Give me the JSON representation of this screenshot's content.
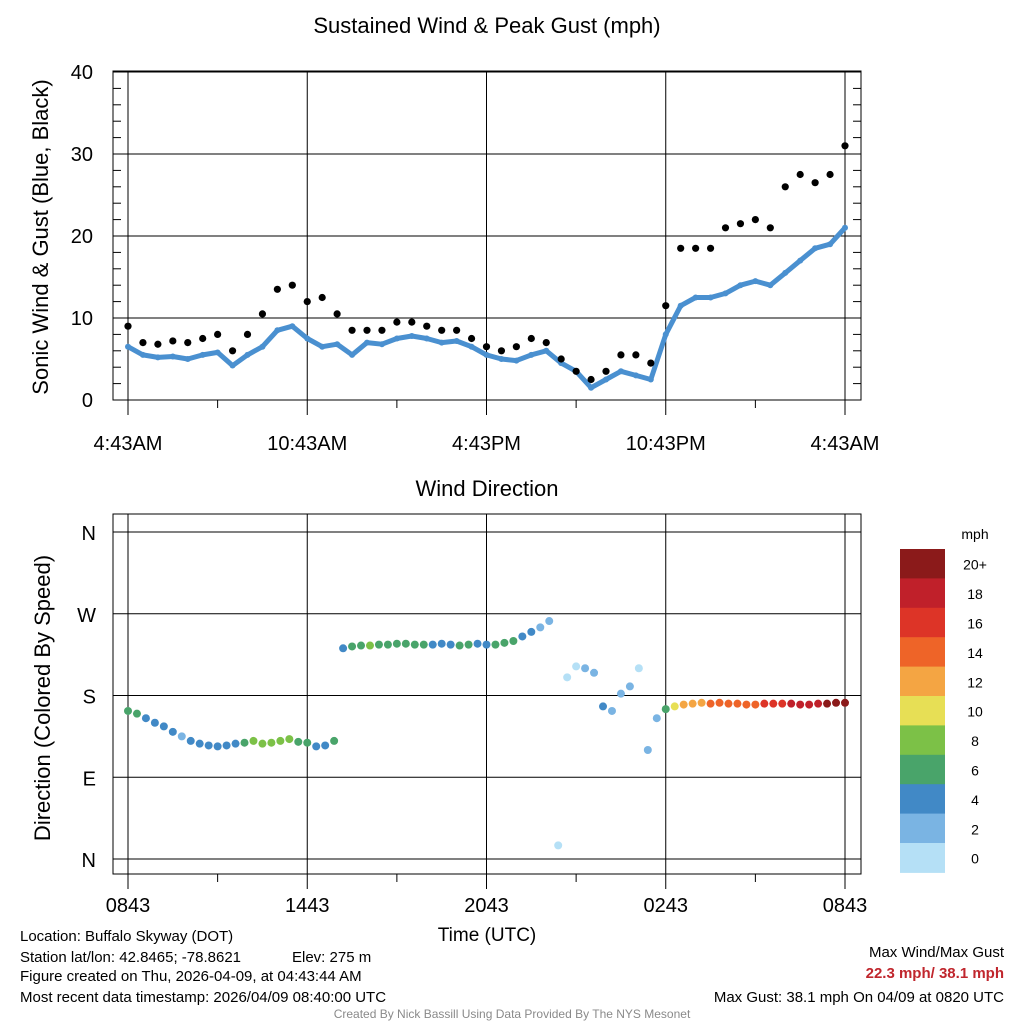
{
  "chart_data": [
    {
      "type": "scatter",
      "title": "Sustained Wind & Peak Gust (mph)",
      "ylabel": "Sonic Wind & Gust (Blue, Black)",
      "ylim": [
        0,
        40
      ],
      "yticks": [
        "0",
        "10",
        "20",
        "30",
        "40"
      ],
      "xticks": [
        "4:43AM",
        "10:43AM",
        "4:43PM",
        "10:43PM",
        "4:43AM"
      ],
      "xlim_hours": [
        0,
        24
      ],
      "series": [
        {
          "name": "Sustained Wind",
          "color": "#4a90d0",
          "x": [
            0,
            0.5,
            1,
            1.5,
            2,
            2.5,
            3,
            3.5,
            4,
            4.5,
            5,
            5.5,
            6,
            6.5,
            7,
            7.5,
            8,
            8.5,
            9,
            9.5,
            10,
            10.5,
            11,
            11.5,
            12,
            12.5,
            13,
            13.5,
            14,
            14.5,
            15,
            15.5,
            16,
            16.5,
            17,
            17.5,
            18,
            18.5,
            19,
            19.5,
            20,
            20.5,
            21,
            21.5,
            22,
            22.5,
            23,
            23.5,
            24
          ],
          "values": [
            6.5,
            5.5,
            5.2,
            5.3,
            5.0,
            5.5,
            5.8,
            4.2,
            5.5,
            6.5,
            8.5,
            9.0,
            7.5,
            6.5,
            6.8,
            5.5,
            7.0,
            6.8,
            7.5,
            7.8,
            7.5,
            7.0,
            7.2,
            6.5,
            5.5,
            5.0,
            4.8,
            5.5,
            6.0,
            4.5,
            3.5,
            1.5,
            2.5,
            3.5,
            3.0,
            2.5,
            8.0,
            11.5,
            12.5,
            12.5,
            13.0,
            14.0,
            14.5,
            14.0,
            15.5,
            17.0,
            18.5,
            19.0,
            21.0
          ]
        },
        {
          "name": "Peak Gust",
          "color": "#000000",
          "x": [
            0,
            0.5,
            1,
            1.5,
            2,
            2.5,
            3,
            3.5,
            4,
            4.5,
            5,
            5.5,
            6,
            6.5,
            7,
            7.5,
            8,
            8.5,
            9,
            9.5,
            10,
            10.5,
            11,
            11.5,
            12,
            12.5,
            13,
            13.5,
            14,
            14.5,
            15,
            15.5,
            16,
            16.5,
            17,
            17.5,
            18,
            18.5,
            19,
            19.5,
            20,
            20.5,
            21,
            21.5,
            22,
            22.5,
            23,
            23.5,
            24
          ],
          "values": [
            9.0,
            7.0,
            6.8,
            7.2,
            7.0,
            7.5,
            8.0,
            6.0,
            8.0,
            10.5,
            13.5,
            14.0,
            12.0,
            12.5,
            10.5,
            8.5,
            8.5,
            8.5,
            9.5,
            9.5,
            9.0,
            8.5,
            8.5,
            7.5,
            6.5,
            6.0,
            6.5,
            7.5,
            7.0,
            5.0,
            3.5,
            2.5,
            3.5,
            5.5,
            5.5,
            4.5,
            11.5,
            18.5,
            18.5,
            18.5,
            21.0,
            21.5,
            22.0,
            21.0,
            26.0,
            27.5,
            26.5,
            27.5,
            31.0
          ]
        }
      ]
    },
    {
      "type": "scatter",
      "title": "Wind Direction",
      "ylabel": "Direction (Colored By Speed)",
      "yticks": [
        "N",
        "E",
        "S",
        "W",
        "N"
      ],
      "ylim": [
        0,
        360
      ],
      "xticks": [
        "0843",
        "1443",
        "2043",
        "0243",
        "0843"
      ],
      "xlabel": "Time (UTC)",
      "x": [
        0,
        0.3,
        0.6,
        0.9,
        1.2,
        1.5,
        1.8,
        2.1,
        2.4,
        2.7,
        3.0,
        3.3,
        3.6,
        3.9,
        4.2,
        4.5,
        4.8,
        5.1,
        5.4,
        5.7,
        6.0,
        6.3,
        6.6,
        6.9,
        7.2,
        7.5,
        7.8,
        8.1,
        8.4,
        8.7,
        9.0,
        9.3,
        9.6,
        9.9,
        10.2,
        10.5,
        10.8,
        11.1,
        11.4,
        11.7,
        12.0,
        12.3,
        12.6,
        12.9,
        13.2,
        13.5,
        13.8,
        14.1,
        14.4,
        14.7,
        15.0,
        15.3,
        15.6,
        15.9,
        16.2,
        16.5,
        16.8,
        17.1,
        17.4,
        17.7,
        18.0,
        18.3,
        18.6,
        18.9,
        19.2,
        19.5,
        19.8,
        20.1,
        20.4,
        20.7,
        21.0,
        21.3,
        21.6,
        21.9,
        22.2,
        22.5,
        22.8,
        23.1,
        23.4,
        23.7,
        24.0
      ],
      "values": [
        163,
        160,
        155,
        150,
        146,
        140,
        135,
        130,
        127,
        125,
        124,
        125,
        127,
        128,
        130,
        127,
        128,
        130,
        132,
        129,
        128,
        124,
        125,
        130,
        232,
        234,
        235,
        235,
        236,
        236,
        237,
        237,
        236,
        236,
        236,
        237,
        236,
        235,
        236,
        237,
        236,
        236,
        238,
        240,
        245,
        250,
        255,
        262,
        15,
        200,
        212,
        210,
        205,
        168,
        163,
        182,
        190,
        210,
        120,
        155,
        165,
        168,
        170,
        171,
        172,
        171,
        172,
        171,
        171,
        170,
        170,
        171,
        171,
        171,
        171,
        170,
        170,
        171,
        171,
        172,
        172
      ],
      "speeds": [
        6,
        6,
        5,
        4,
        4,
        4,
        3,
        4,
        5,
        4,
        4,
        5,
        5,
        7,
        8,
        8,
        9,
        9,
        8,
        7,
        6,
        5,
        5,
        6,
        4,
        6,
        7,
        8,
        7,
        7,
        7,
        6,
        7,
        6,
        5,
        4,
        5,
        6,
        6,
        5,
        5,
        6,
        7,
        6,
        5,
        4,
        3,
        2,
        1,
        1,
        1,
        2,
        3,
        4,
        2,
        3,
        2,
        1,
        2,
        3,
        6,
        10,
        12,
        13,
        13,
        14,
        15,
        14,
        14,
        15,
        15,
        16,
        16,
        17,
        18,
        18,
        19,
        19,
        20,
        21,
        20
      ],
      "colorbar": {
        "unit": "mph",
        "labels": [
          "20+",
          "18",
          "16",
          "14",
          "12",
          "10",
          "8",
          "6",
          "4",
          "2",
          "0"
        ],
        "colors": [
          "#8b1a1a",
          "#c0202a",
          "#dd3427",
          "#ee6428",
          "#f4a543",
          "#e7df55",
          "#7cc147",
          "#49a46a",
          "#4189c6",
          "#7ab4e3",
          "#b5e0f6"
        ]
      }
    }
  ],
  "info": {
    "location": "Location: Buffalo Skyway (DOT)",
    "latlon": "Station lat/lon: 42.8465; -78.8621",
    "elev": "Elev: 275 m",
    "created": "Figure created on Thu, 2026-04-09, at 04:43:44 AM",
    "recent": "Most recent data timestamp: 2026/04/09 08:40:00 UTC"
  },
  "stats": {
    "label": "Max Wind/Max Gust",
    "value": "22.3 mph/ 38.1 mph",
    "maxgust": "Max Gust: 38.1 mph On 04/09 at 0820 UTC"
  },
  "footer": "Created By Nick Bassill Using Data Provided By The NYS Mesonet"
}
